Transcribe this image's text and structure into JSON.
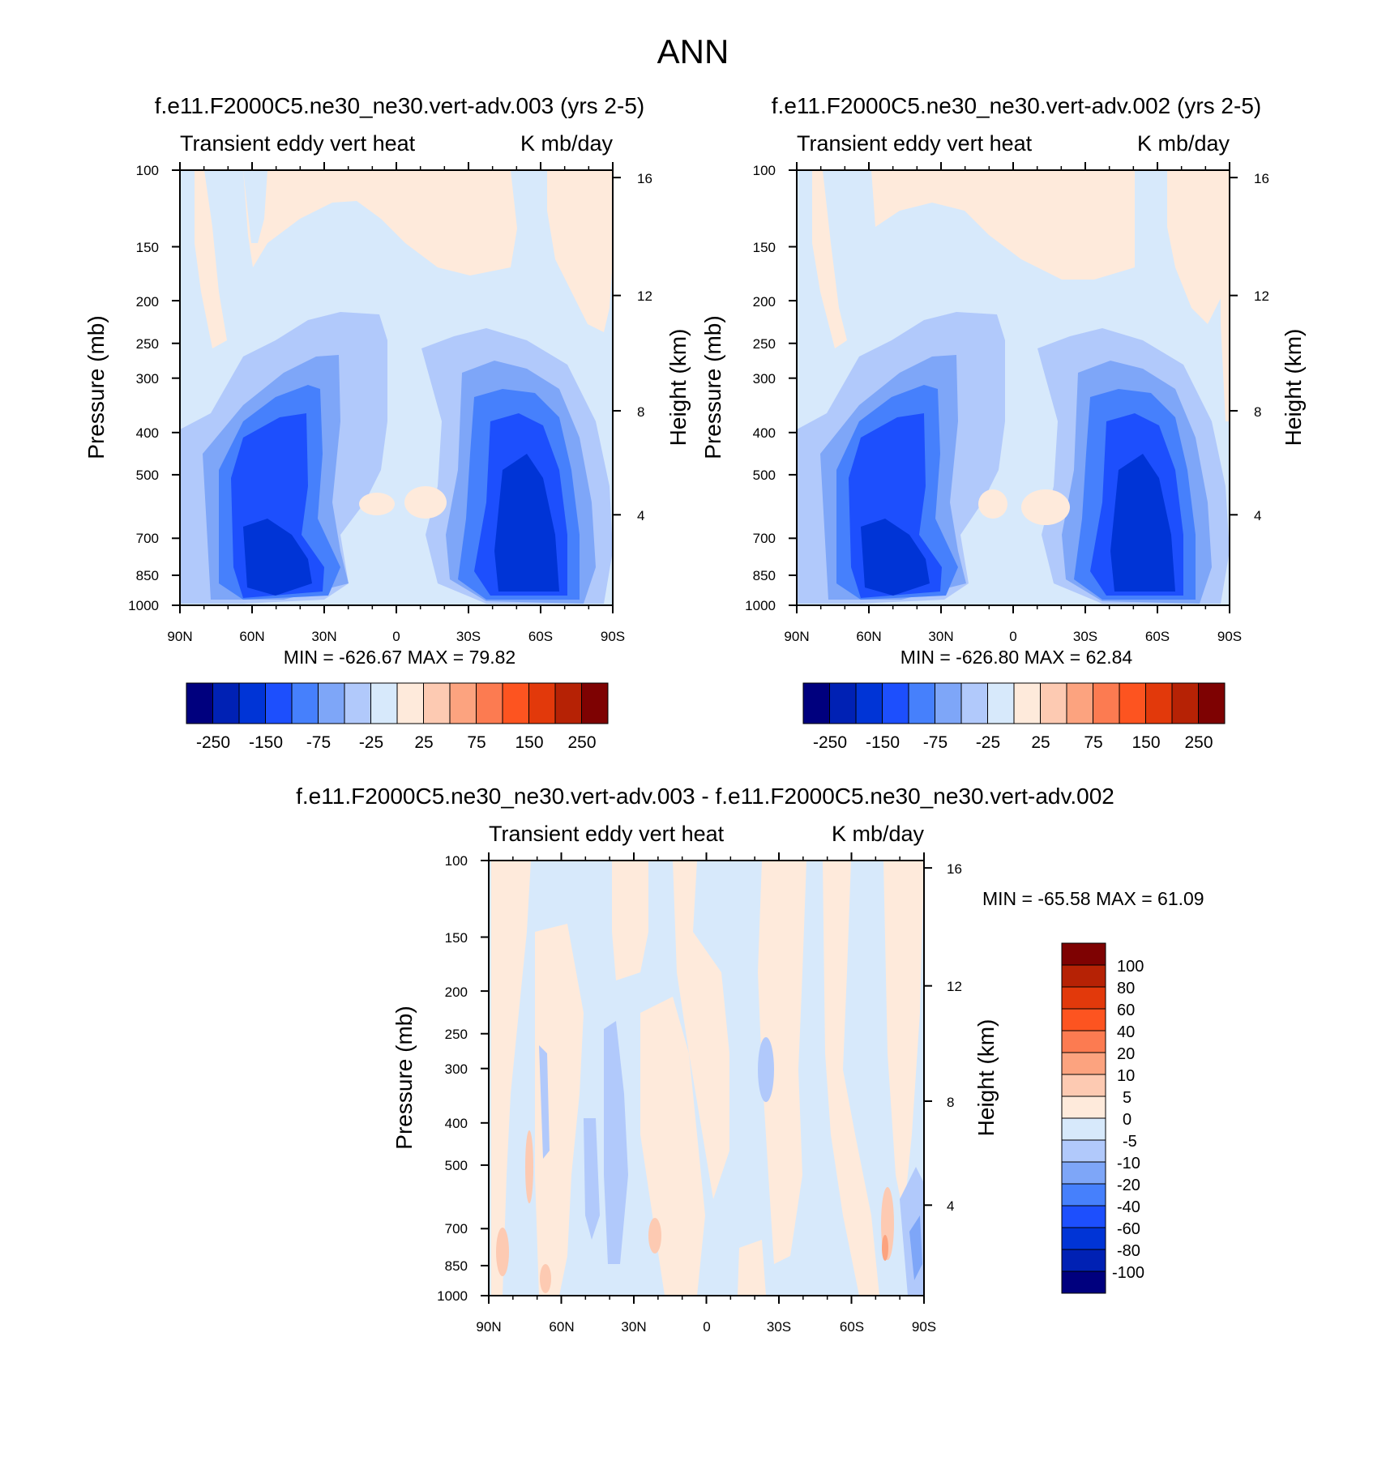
{
  "page_title": "ANN",
  "chart_data": [
    {
      "type": "heatmap",
      "title": "f.e11.F2000C5.ne30_ne30.vert-adv.003 (yrs 2-5)",
      "left_label": "Transient eddy vert heat",
      "right_label": "K mb/day",
      "ylabel": "Pressure (mb)",
      "y2label": "Height (km)",
      "x_ticks": [
        "90N",
        "60N",
        "30N",
        "0",
        "30S",
        "60S",
        "90S"
      ],
      "y_ticks": [
        "100",
        "150",
        "200",
        "250",
        "300",
        "400",
        "500",
        "700",
        "850",
        "1000"
      ],
      "y2_ticks": [
        "16",
        "12",
        "8",
        "4"
      ],
      "min_max": "MIN = -626.67  MAX =  79.82",
      "colorbar_labels": [
        "-250",
        "-150",
        "-75",
        "-25",
        "25",
        "75",
        "150",
        "250"
      ]
    },
    {
      "type": "heatmap",
      "title": "f.e11.F2000C5.ne30_ne30.vert-adv.002 (yrs 2-5)",
      "left_label": "Transient eddy vert heat",
      "right_label": "K mb/day",
      "ylabel": "Pressure (mb)",
      "y2label": "Height (km)",
      "x_ticks": [
        "90N",
        "60N",
        "30N",
        "0",
        "30S",
        "60S",
        "90S"
      ],
      "y_ticks": [
        "100",
        "150",
        "200",
        "250",
        "300",
        "400",
        "500",
        "700",
        "850",
        "1000"
      ],
      "y2_ticks": [
        "16",
        "12",
        "8",
        "4"
      ],
      "min_max": "MIN = -626.80  MAX =  62.84",
      "colorbar_labels": [
        "-250",
        "-150",
        "-75",
        "-25",
        "25",
        "75",
        "150",
        "250"
      ]
    },
    {
      "type": "heatmap",
      "title": "f.e11.F2000C5.ne30_ne30.vert-adv.003 - f.e11.F2000C5.ne30_ne30.vert-adv.002",
      "left_label": "Transient eddy vert heat",
      "right_label": "K mb/day",
      "ylabel": "Pressure (mb)",
      "y2label": "Height (km)",
      "x_ticks": [
        "90N",
        "60N",
        "30N",
        "0",
        "30S",
        "60S",
        "90S"
      ],
      "y_ticks": [
        "100",
        "150",
        "200",
        "250",
        "300",
        "400",
        "500",
        "700",
        "850",
        "1000"
      ],
      "y2_ticks": [
        "16",
        "12",
        "8",
        "4"
      ],
      "min_max": "MIN = -65.58  MAX =  61.09",
      "colorbar_labels": [
        "100",
        "80",
        "60",
        "40",
        "20",
        "10",
        "5",
        "0",
        "-5",
        "-10",
        "-20",
        "-40",
        "-60",
        "-80",
        "-100"
      ]
    }
  ],
  "colors": {
    "palette16": [
      "#00007e",
      "#0021b4",
      "#0034d6",
      "#1d4ffd",
      "#4680fc",
      "#7ea6f8",
      "#b1c9fb",
      "#d7e9fb",
      "#feeadb",
      "#fdcab2",
      "#fca37f",
      "#fc7b51",
      "#fd5420",
      "#e2390b",
      "#b62205",
      "#7e0202"
    ],
    "bg_blue": "#d7e9fb",
    "bg_orange": "#feeadb"
  }
}
